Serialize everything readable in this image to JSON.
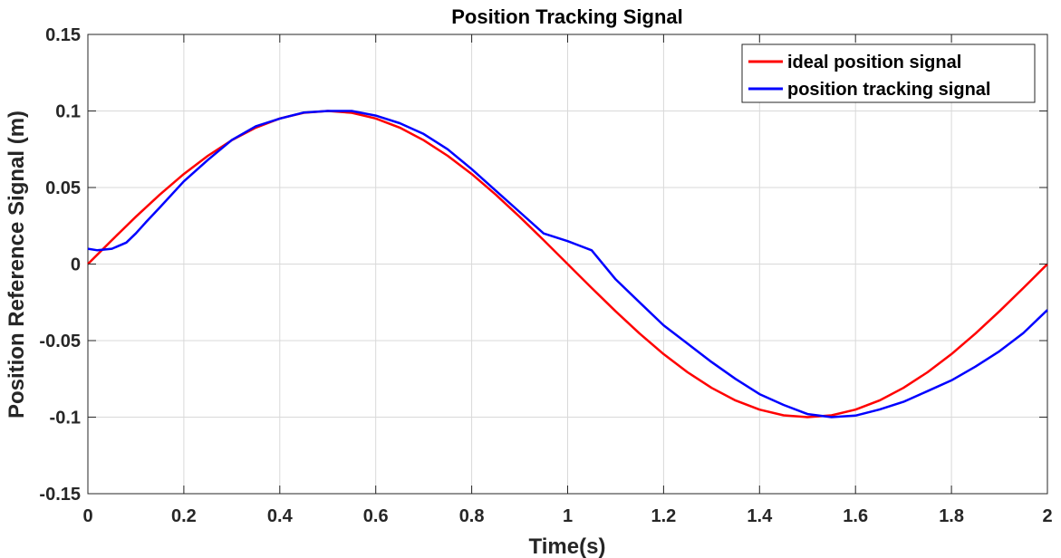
{
  "chart_data": {
    "type": "line",
    "title": "Position Tracking Signal",
    "xlabel": "Time(s)",
    "ylabel": "Position Reference Signal (m)",
    "xlim": [
      0,
      2
    ],
    "ylim": [
      -0.15,
      0.15
    ],
    "grid": true,
    "legend_position": "top-right",
    "x_ticks": [
      0,
      0.2,
      0.4,
      0.6,
      0.8,
      1,
      1.2,
      1.4,
      1.6,
      1.8,
      2
    ],
    "x_tick_labels": [
      "0",
      "0.2",
      "0.4",
      "0.6",
      "0.8",
      "1",
      "1.2",
      "1.4",
      "1.6",
      "1.8",
      "2"
    ],
    "y_ticks": [
      -0.15,
      -0.1,
      -0.05,
      0,
      0.05,
      0.1,
      0.15
    ],
    "y_tick_labels": [
      "-0.15",
      "-0.1",
      "-0.05",
      "0",
      "0.05",
      "0.1",
      "0.15"
    ],
    "series": [
      {
        "name": "ideal position signal",
        "color": "#ff0000",
        "x": [
          0,
          0.05,
          0.1,
          0.15,
          0.2,
          0.25,
          0.3,
          0.35,
          0.4,
          0.45,
          0.5,
          0.55,
          0.6,
          0.65,
          0.7,
          0.75,
          0.8,
          0.85,
          0.9,
          0.95,
          1.0,
          1.05,
          1.1,
          1.15,
          1.2,
          1.25,
          1.3,
          1.35,
          1.4,
          1.45,
          1.5,
          1.55,
          1.6,
          1.65,
          1.7,
          1.75,
          1.8,
          1.85,
          1.9,
          1.95,
          2.0
        ],
        "y": [
          0,
          0.0156,
          0.0309,
          0.0454,
          0.0588,
          0.0707,
          0.0809,
          0.0891,
          0.0951,
          0.0988,
          0.1,
          0.0988,
          0.0951,
          0.0891,
          0.0809,
          0.0707,
          0.0588,
          0.0454,
          0.0309,
          0.0156,
          0,
          -0.0156,
          -0.0309,
          -0.0454,
          -0.0588,
          -0.0707,
          -0.0809,
          -0.0891,
          -0.0951,
          -0.0988,
          -0.1,
          -0.0988,
          -0.0951,
          -0.0891,
          -0.0809,
          -0.0707,
          -0.0588,
          -0.0454,
          -0.0309,
          -0.0156,
          0
        ]
      },
      {
        "name": "position tracking signal",
        "color": "#0000ff",
        "x": [
          0,
          0.02,
          0.05,
          0.08,
          0.1,
          0.12,
          0.15,
          0.2,
          0.25,
          0.3,
          0.35,
          0.4,
          0.45,
          0.5,
          0.55,
          0.6,
          0.65,
          0.7,
          0.75,
          0.8,
          0.85,
          0.9,
          0.95,
          1.0,
          1.05,
          1.1,
          1.15,
          1.2,
          1.25,
          1.3,
          1.35,
          1.4,
          1.45,
          1.5,
          1.55,
          1.6,
          1.65,
          1.7,
          1.75,
          1.8,
          1.85,
          1.9,
          1.95,
          2.0
        ],
        "y": [
          0.01,
          0.009,
          0.01,
          0.014,
          0.02,
          0.027,
          0.037,
          0.054,
          0.068,
          0.081,
          0.09,
          0.095,
          0.099,
          0.1,
          0.1,
          0.097,
          0.092,
          0.085,
          0.075,
          0.062,
          0.048,
          0.034,
          0.02,
          0.015,
          0.009,
          -0.01,
          -0.025,
          -0.04,
          -0.052,
          -0.064,
          -0.075,
          -0.085,
          -0.092,
          -0.098,
          -0.1,
          -0.099,
          -0.095,
          -0.09,
          -0.083,
          -0.076,
          -0.067,
          -0.057,
          -0.045,
          -0.03
        ]
      }
    ]
  }
}
